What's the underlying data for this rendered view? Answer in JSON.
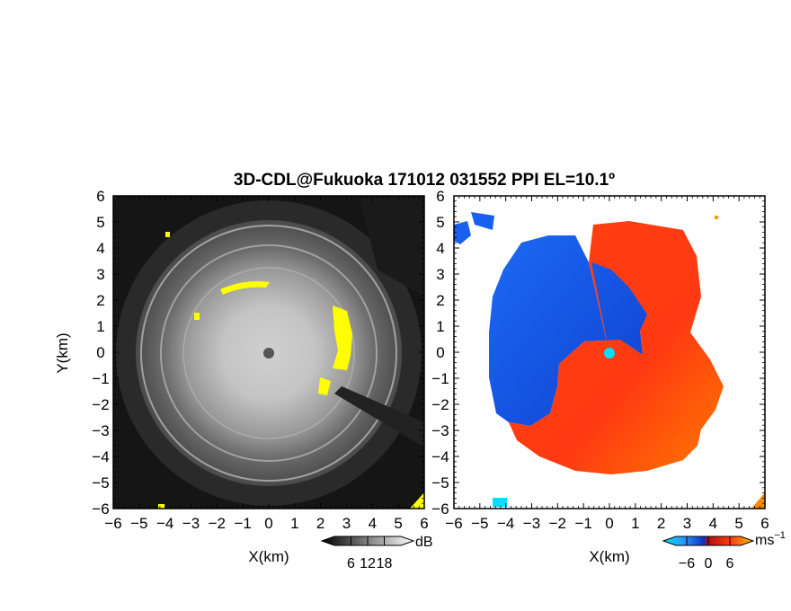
{
  "chart_data": {
    "title": "3D-CDL@Fukuoka 171012 031552 PPI EL=10.1º",
    "panels": [
      {
        "id": "snr",
        "type": "heatmap",
        "xlabel": "X(km)",
        "ylabel": "Y(km)",
        "xlim": [
          -6,
          6
        ],
        "ylim": [
          -6,
          6
        ],
        "xticks": [
          "−6",
          "−5",
          "−4",
          "−3",
          "−2",
          "−1",
          "0",
          "1",
          "2",
          "3",
          "4",
          "5",
          "6"
        ],
        "yticks": [
          "6",
          "5",
          "4",
          "3",
          "2",
          "1",
          "0",
          "−1",
          "−2",
          "−3",
          "−4",
          "−5",
          "−6"
        ],
        "colorbar": {
          "ticks": [
            "6",
            "12",
            "18"
          ],
          "values": [
            6,
            12,
            18
          ],
          "unit": "dB",
          "range": [
            0,
            24
          ]
        },
        "colors": {
          "low": "#000000",
          "high": "#ffffff",
          "flag": "#ffff00"
        }
      },
      {
        "id": "doppler",
        "type": "heatmap",
        "xlabel": "X(km)",
        "xlim": [
          -6,
          6
        ],
        "ylim": [
          -6,
          6
        ],
        "xticks": [
          "−6",
          "−5",
          "−4",
          "−3",
          "−2",
          "−1",
          "0",
          "1",
          "2",
          "3",
          "4",
          "5",
          "6"
        ],
        "yticks": [
          "6",
          "5",
          "4",
          "3",
          "2",
          "1",
          "0",
          "−1",
          "−2",
          "−3",
          "−4",
          "−5",
          "−6"
        ],
        "colorbar": {
          "ticks": [
            "−6",
            "0",
            "6"
          ],
          "values": [
            -6,
            0,
            6
          ],
          "unit": "ms",
          "unit_exp": "−1",
          "range": [
            -9,
            9
          ]
        },
        "colors": {
          "negative": "#1060f0",
          "positive": "#ff3010",
          "far_positive": "#ff9a00",
          "center": "#00e0ff"
        }
      }
    ]
  }
}
